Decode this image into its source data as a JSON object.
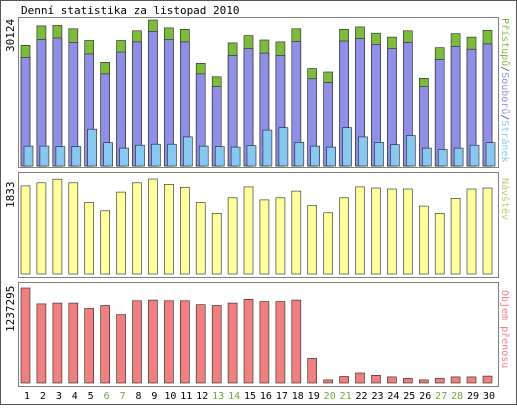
{
  "title": "Denní statistika za listopad 2010",
  "colors": {
    "background": "#ffffff",
    "outer_border": "#555555",
    "panel_border": "#7f7f7f",
    "pristupu": "#7dbb3c",
    "souboru": "#8f8fe6",
    "stranek": "#88c8f0",
    "navstev": "#ffff9c",
    "objem": "#f08080",
    "day_label": "#000000",
    "weekend_label": "#6ea83a"
  },
  "chart_data": [
    {
      "type": "bar",
      "title": "",
      "xlabel": "",
      "ylabel_value": "30124",
      "legend_sep": "/",
      "categories": [
        "1",
        "2",
        "3",
        "4",
        "5",
        "6",
        "7",
        "8",
        "9",
        "10",
        "11",
        "12",
        "13",
        "14",
        "15",
        "16",
        "17",
        "18",
        "19",
        "20",
        "21",
        "22",
        "23",
        "24",
        "25",
        "26",
        "27",
        "28",
        "29",
        "30"
      ],
      "ylim": [
        0,
        30124
      ],
      "series": [
        {
          "name": "Přístupů",
          "color_key": "pristupu",
          "values": [
            24900,
            28900,
            29000,
            28300,
            25900,
            21400,
            25900,
            27900,
            30124,
            28500,
            28200,
            21200,
            18400,
            25400,
            26900,
            26000,
            25600,
            28300,
            20100,
            19400,
            28200,
            28700,
            27400,
            26600,
            27900,
            18100,
            24400,
            27300,
            26600,
            28000
          ]
        },
        {
          "name": "Souborů",
          "color_key": "souboru",
          "values": [
            22400,
            26100,
            26400,
            25500,
            23100,
            19000,
            23500,
            25600,
            27800,
            26100,
            25600,
            19000,
            16400,
            22800,
            24200,
            23300,
            22800,
            25700,
            18000,
            17200,
            25800,
            26300,
            25100,
            24200,
            25500,
            16400,
            22000,
            24700,
            24100,
            25200
          ]
        },
        {
          "name": "Stránek",
          "color_key": "stranek",
          "values": [
            4100,
            4100,
            4000,
            4000,
            7600,
            4800,
            3700,
            4300,
            4500,
            4500,
            6000,
            4100,
            4000,
            3900,
            4200,
            7400,
            7900,
            4900,
            4100,
            3900,
            7900,
            6000,
            4900,
            4400,
            6300,
            3700,
            3400,
            3700,
            4300,
            4800
          ]
        }
      ]
    },
    {
      "type": "bar",
      "title": "",
      "xlabel": "",
      "ylabel_value": "1833",
      "categories": [
        "1",
        "2",
        "3",
        "4",
        "5",
        "6",
        "7",
        "8",
        "9",
        "10",
        "11",
        "12",
        "13",
        "14",
        "15",
        "16",
        "17",
        "18",
        "19",
        "20",
        "21",
        "22",
        "23",
        "24",
        "25",
        "26",
        "27",
        "28",
        "29",
        "30"
      ],
      "ylim": [
        0,
        1833
      ],
      "series": [
        {
          "name": "Návštěv",
          "color_key": "navstev",
          "values": [
            1700,
            1760,
            1830,
            1760,
            1380,
            1220,
            1580,
            1760,
            1833,
            1730,
            1670,
            1380,
            1170,
            1470,
            1680,
            1430,
            1470,
            1600,
            1320,
            1180,
            1470,
            1680,
            1660,
            1640,
            1640,
            1310,
            1170,
            1460,
            1640,
            1660
          ]
        }
      ]
    },
    {
      "type": "bar",
      "title": "",
      "xlabel": "",
      "ylabel_value": "1237295",
      "categories": [
        "1",
        "2",
        "3",
        "4",
        "5",
        "6",
        "7",
        "8",
        "9",
        "10",
        "11",
        "12",
        "13",
        "14",
        "15",
        "16",
        "17",
        "18",
        "19",
        "20",
        "21",
        "22",
        "23",
        "24",
        "25",
        "26",
        "27",
        "28",
        "29",
        "30"
      ],
      "ylim": [
        0,
        1237295
      ],
      "series": [
        {
          "name": "Objem přenosu",
          "color_key": "objem",
          "values": [
            1237295,
            1030000,
            1040000,
            1040000,
            970000,
            1010000,
            890000,
            1070000,
            1080000,
            1070000,
            1070000,
            1020000,
            1010000,
            1040000,
            1090000,
            1060000,
            1060000,
            1080000,
            320000,
            40000,
            85000,
            130000,
            100000,
            80000,
            60000,
            40000,
            60000,
            80000,
            80000,
            90000
          ]
        }
      ]
    }
  ],
  "weekend_days": [
    "6",
    "7",
    "13",
    "14",
    "20",
    "21",
    "27",
    "28"
  ]
}
